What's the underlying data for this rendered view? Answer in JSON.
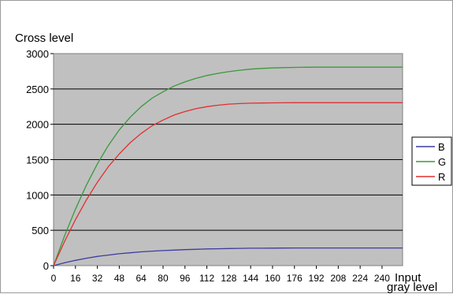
{
  "chart_data": {
    "type": "line",
    "ylabel": "Cross level",
    "xlabel": "Input gray level",
    "xlabel_lines": [
      "Input",
      "gray level"
    ],
    "x_ticks": [
      0,
      16,
      32,
      48,
      64,
      80,
      96,
      112,
      128,
      144,
      160,
      176,
      192,
      208,
      224,
      240
    ],
    "xlim": [
      0,
      255
    ],
    "ylim": [
      0,
      3000
    ],
    "y_ticks": [
      0,
      500,
      1000,
      1500,
      2000,
      2500,
      3000
    ],
    "grid": "horizontal",
    "legend": "right",
    "plot_background": "#c0c0c0",
    "x": [
      0,
      8,
      16,
      24,
      32,
      40,
      48,
      56,
      64,
      72,
      80,
      88,
      96,
      104,
      112,
      120,
      128,
      136,
      144,
      152,
      160,
      168,
      176,
      184,
      192,
      200,
      208,
      216,
      224,
      232,
      240,
      248,
      255
    ],
    "series": [
      {
        "name": "B",
        "color": "#3c3ca0",
        "values": [
          0,
          40,
          75,
          105,
          130,
          150,
          168,
          182,
          195,
          205,
          213,
          220,
          226,
          231,
          236,
          239,
          242,
          244,
          246,
          247,
          248,
          249,
          250,
          250,
          250,
          250,
          250,
          250,
          250,
          250,
          250,
          250,
          250
        ]
      },
      {
        "name": "G",
        "color": "#3a9a3a",
        "values": [
          0,
          420,
          800,
          1140,
          1440,
          1700,
          1920,
          2100,
          2250,
          2370,
          2460,
          2540,
          2600,
          2650,
          2690,
          2720,
          2745,
          2765,
          2780,
          2790,
          2797,
          2802,
          2805,
          2807,
          2808,
          2808,
          2808,
          2808,
          2808,
          2808,
          2808,
          2808,
          2808
        ]
      },
      {
        "name": "R",
        "color": "#e03030",
        "values": [
          0,
          340,
          650,
          930,
          1180,
          1400,
          1580,
          1740,
          1870,
          1980,
          2060,
          2130,
          2180,
          2220,
          2250,
          2270,
          2285,
          2293,
          2298,
          2301,
          2303,
          2304,
          2305,
          2305,
          2305,
          2305,
          2305,
          2305,
          2305,
          2305,
          2305,
          2305,
          2305
        ]
      }
    ]
  }
}
